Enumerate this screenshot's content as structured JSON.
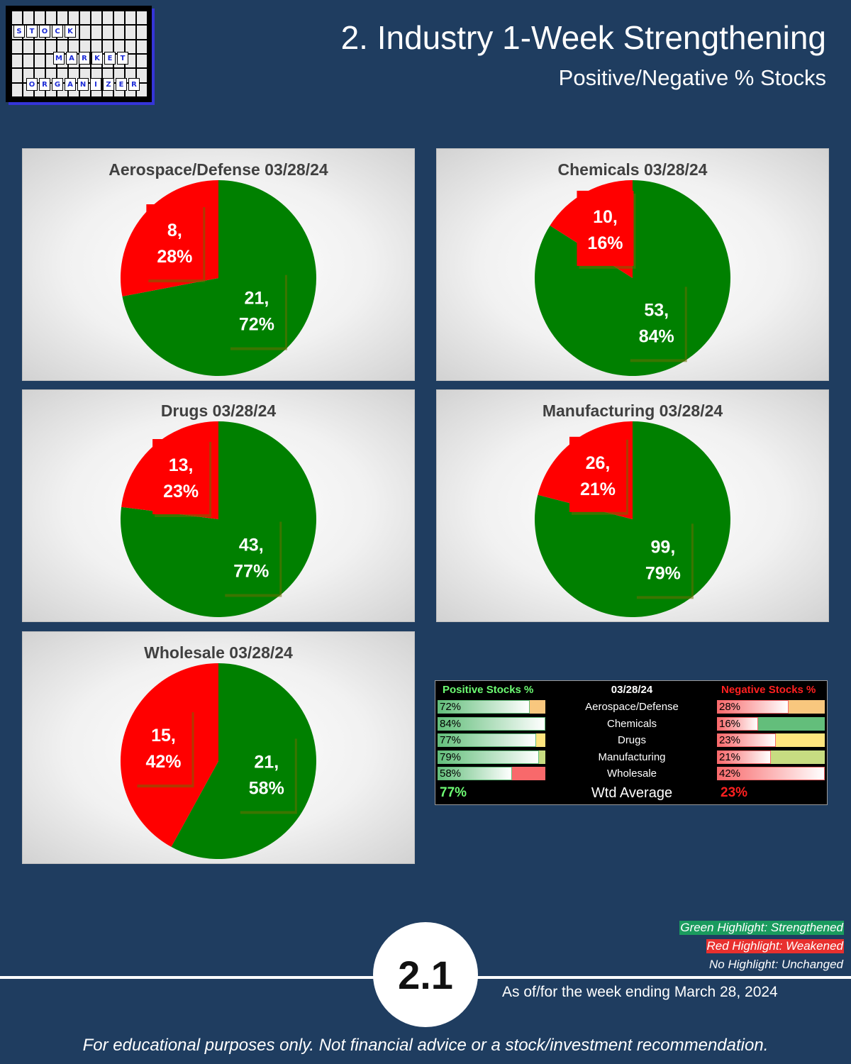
{
  "header": {
    "title": "2. Industry 1-Week Strengthening",
    "subtitle": "Positive/Negative % Stocks"
  },
  "logo": {
    "words": [
      "STOCK",
      "MARKET",
      "ORGANIZER"
    ]
  },
  "colors": {
    "background": "#1f3d60",
    "positive": "#008000",
    "negative": "#ff0000",
    "label_shadow": "#6b6b00"
  },
  "chart_data": [
    {
      "type": "pie",
      "title": "Aerospace/Defense 03/28/24",
      "slices": [
        {
          "label": "Positive",
          "value": 21,
          "percent": 72,
          "color": "#008000",
          "text": "21,",
          "text2": "72%"
        },
        {
          "label": "Negative",
          "value": 8,
          "percent": 28,
          "color": "#ff0000",
          "text": "8,",
          "text2": "28%"
        }
      ]
    },
    {
      "type": "pie",
      "title": "Chemicals 03/28/24",
      "slices": [
        {
          "label": "Positive",
          "value": 53,
          "percent": 84,
          "color": "#008000",
          "text": "53,",
          "text2": "84%"
        },
        {
          "label": "Negative",
          "value": 10,
          "percent": 16,
          "color": "#ff0000",
          "text": "10,",
          "text2": "16%"
        }
      ]
    },
    {
      "type": "pie",
      "title": "Drugs 03/28/24",
      "slices": [
        {
          "label": "Positive",
          "value": 43,
          "percent": 77,
          "color": "#008000",
          "text": "43,",
          "text2": "77%"
        },
        {
          "label": "Negative",
          "value": 13,
          "percent": 23,
          "color": "#ff0000",
          "text": "13,",
          "text2": "23%"
        }
      ]
    },
    {
      "type": "pie",
      "title": "Manufacturing 03/28/24",
      "slices": [
        {
          "label": "Positive",
          "value": 99,
          "percent": 79,
          "color": "#008000",
          "text": "99,",
          "text2": "79%"
        },
        {
          "label": "Negative",
          "value": 26,
          "percent": 21,
          "color": "#ff0000",
          "text": "26,",
          "text2": "21%"
        }
      ]
    },
    {
      "type": "pie",
      "title": "Wholesale 03/28/24",
      "slices": [
        {
          "label": "Positive",
          "value": 21,
          "percent": 58,
          "color": "#008000",
          "text": "21,",
          "text2": "58%"
        },
        {
          "label": "Negative",
          "value": 15,
          "percent": 42,
          "color": "#ff0000",
          "text": "15,",
          "text2": "42%"
        }
      ]
    },
    {
      "type": "table",
      "headers": [
        "Positive Stocks %",
        "03/28/24",
        "Negative Stocks %"
      ],
      "rows": [
        {
          "name": "Aerospace/Defense",
          "pos": "72%",
          "pos_value": 72,
          "neg": "28%",
          "neg_value": 28,
          "highlight": "#f8c77e"
        },
        {
          "name": "Chemicals",
          "pos": "84%",
          "pos_value": 84,
          "neg": "16%",
          "neg_value": 16,
          "highlight": "#63be7b"
        },
        {
          "name": "Drugs",
          "pos": "77%",
          "pos_value": 77,
          "neg": "23%",
          "neg_value": 23,
          "highlight": "#ffe57e"
        },
        {
          "name": "Manufacturing",
          "pos": "79%",
          "pos_value": 79,
          "neg": "21%",
          "neg_value": 21,
          "highlight": "#c7dc81"
        },
        {
          "name": "Wholesale",
          "pos": "58%",
          "pos_value": 58,
          "neg": "42%",
          "neg_value": 42,
          "highlight": "#f8696b"
        }
      ],
      "average": {
        "label": "Wtd Average",
        "pos": "77%",
        "neg": "23%"
      }
    }
  ],
  "legend": {
    "green": "Green Highlight: Strengthened",
    "red": "Red Highlight: Weakened",
    "none": "No Highlight: Unchanged"
  },
  "footer": {
    "page_number": "2.1",
    "as_of": "As of/for the week ending March 28, 2024",
    "disclaimer": "For educational purposes only. Not financial advice or a stock/investment recommendation."
  }
}
